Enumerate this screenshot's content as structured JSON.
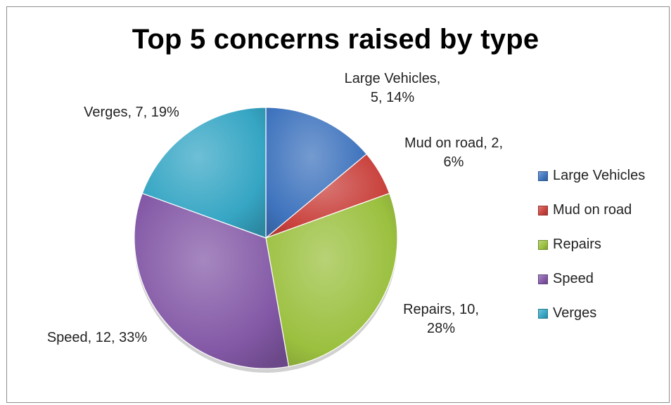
{
  "chart_data": {
    "type": "pie",
    "title": "Top 5 concerns raised by type",
    "categories": [
      "Large Vehicles",
      "Mud on road",
      "Repairs",
      "Speed",
      "Verges"
    ],
    "values": [
      5,
      2,
      10,
      12,
      7
    ],
    "percentages": [
      "14%",
      "6%",
      "28%",
      "33%",
      "19%"
    ],
    "colors": [
      "#3f74be",
      "#c9413c",
      "#9bc03f",
      "#8358a6",
      "#36a6c4"
    ],
    "data_labels": [
      {
        "lines": [
          "Large Vehicles,",
          "5, 14%"
        ]
      },
      {
        "lines": [
          "Mud on road, 2,",
          "6%"
        ]
      },
      {
        "lines": [
          "Repairs, 10,",
          "28%"
        ]
      },
      {
        "lines": [
          "Speed, 12, 33%"
        ]
      },
      {
        "lines": [
          "Verges, 7, 19%"
        ]
      }
    ],
    "legend_position": "right"
  }
}
